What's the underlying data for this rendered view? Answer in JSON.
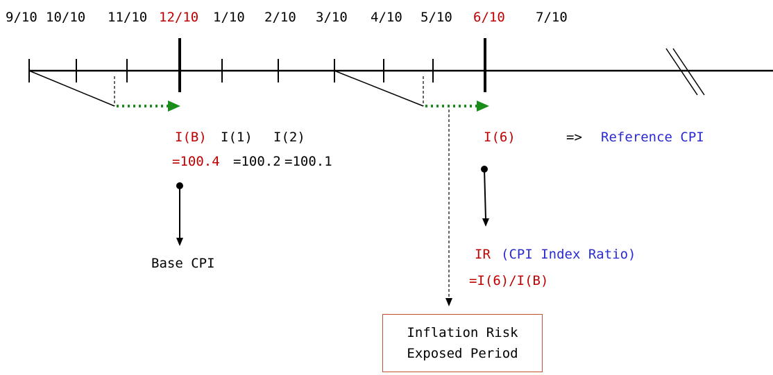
{
  "timeline": {
    "month_labels": [
      {
        "text": "9/10",
        "color": "#000000"
      },
      {
        "text": "10/10",
        "color": "#000000"
      },
      {
        "text": "11/10",
        "color": "#000000"
      },
      {
        "text": "12/10",
        "color": "#c00000"
      },
      {
        "text": "1/10",
        "color": "#000000"
      },
      {
        "text": "2/10",
        "color": "#000000"
      },
      {
        "text": "3/10",
        "color": "#000000"
      },
      {
        "text": "4/10",
        "color": "#000000"
      },
      {
        "text": "5/10",
        "color": "#000000"
      },
      {
        "text": "6/10",
        "color": "#c00000"
      },
      {
        "text": "7/10",
        "color": "#000000"
      }
    ]
  },
  "base_section": {
    "index_labels": [
      "I(B)",
      "I(1)",
      "I(2)"
    ],
    "index_values": [
      "=100.4",
      "=100.2",
      "=100.1"
    ],
    "base_cpi_label": "Base CPI"
  },
  "reference_section": {
    "index_label": "I(6)",
    "arrow_text": "=>",
    "reference_cpi_label": "Reference CPI",
    "ratio_prefix": "IR",
    "ratio_name": "(CPI Index Ratio)",
    "ratio_formula": "=I(6)/I(B)"
  },
  "exposure_box": {
    "line1": "Inflation Risk",
    "line2": "Exposed Period"
  },
  "colors": {
    "highlight_red": "#c00000",
    "label_blue": "#2a2ad4",
    "lag_arrow_green": "#1a8c1a",
    "box_border": "#c0502d"
  }
}
